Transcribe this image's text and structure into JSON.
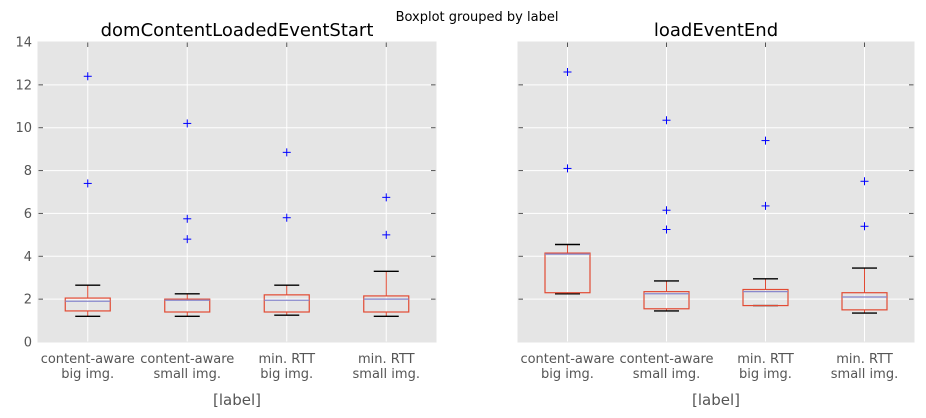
{
  "chart_data": {
    "type": "boxplot",
    "suptitle": "Boxplot grouped by label",
    "shared_y": true,
    "ylim": [
      0,
      14
    ],
    "yticks": [
      "0",
      "2",
      "4",
      "6",
      "8",
      "10",
      "12",
      "14"
    ],
    "grid": true,
    "box_color": "#e24a33",
    "median_color": "#8888cc",
    "whisker_cap_color": "#000000",
    "flier_color": "#0000ff",
    "background": "#e5e5e5",
    "categories": [
      [
        "content-aware",
        "big img."
      ],
      [
        "content-aware",
        "small img."
      ],
      [
        "min. RTT",
        "big img."
      ],
      [
        "min. RTT",
        "small img."
      ]
    ],
    "panels": [
      {
        "title": "domContentLoadedEventStart",
        "xlabel": "[label]",
        "boxes": [
          {
            "whislo": 1.2,
            "q1": 1.45,
            "med": 1.9,
            "q3": 2.05,
            "whishi": 2.65,
            "fliers": [
              7.4,
              12.4
            ]
          },
          {
            "whislo": 1.2,
            "q1": 1.4,
            "med": 1.95,
            "q3": 2.0,
            "whishi": 2.25,
            "fliers": [
              4.8,
              5.75,
              10.2
            ]
          },
          {
            "whislo": 1.25,
            "q1": 1.4,
            "med": 1.95,
            "q3": 2.2,
            "whishi": 2.65,
            "fliers": [
              5.8,
              8.85
            ]
          },
          {
            "whislo": 1.2,
            "q1": 1.4,
            "med": 2.0,
            "q3": 2.15,
            "whishi": 3.3,
            "fliers": [
              5.0,
              6.75
            ]
          }
        ]
      },
      {
        "title": "loadEventEnd",
        "xlabel": "[label]",
        "boxes": [
          {
            "whislo": 2.25,
            "q1": 2.3,
            "med": 4.1,
            "q3": 4.15,
            "whishi": 4.55,
            "fliers": [
              8.1,
              12.6
            ]
          },
          {
            "whislo": 1.45,
            "q1": 1.55,
            "med": 2.25,
            "q3": 2.35,
            "whishi": 2.85,
            "fliers": [
              5.25,
              6.15,
              10.35
            ]
          },
          {
            "whislo": 1.7,
            "q1": 1.7,
            "med": 2.35,
            "q3": 2.45,
            "whishi": 2.95,
            "fliers": [
              6.35,
              9.4
            ]
          },
          {
            "whislo": 1.35,
            "q1": 1.5,
            "med": 2.1,
            "q3": 2.3,
            "whishi": 3.45,
            "fliers": [
              5.4,
              7.5
            ]
          }
        ]
      }
    ]
  }
}
